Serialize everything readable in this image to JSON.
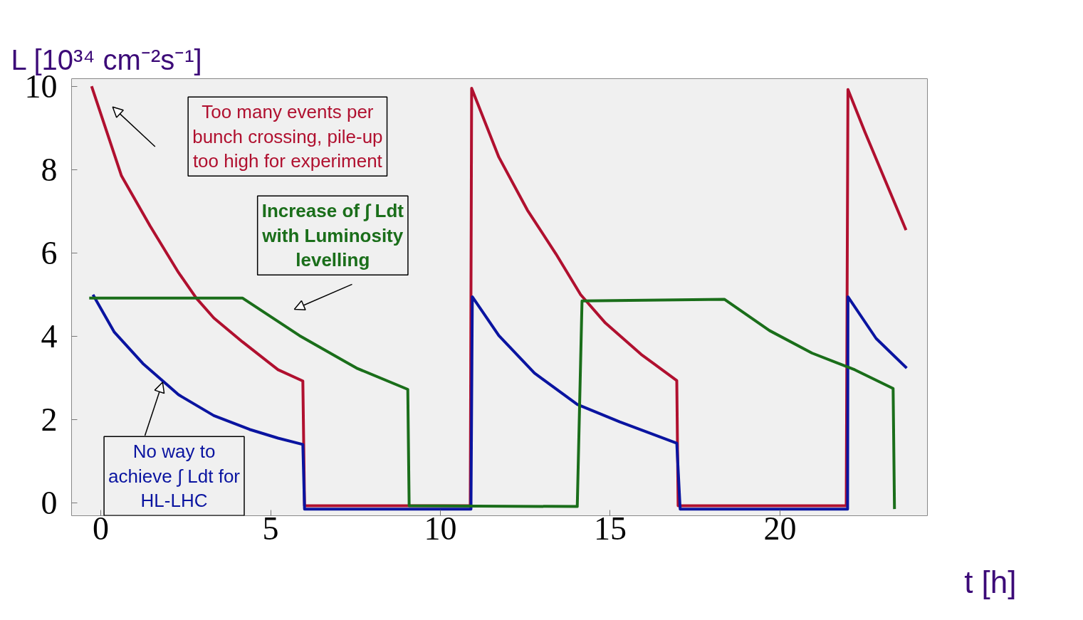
{
  "chart_data": {
    "type": "line",
    "ylabel": "L [10³⁴ cm⁻²s⁻¹]",
    "xlabel": "t [h]",
    "xlim": [
      -0.86,
      24.34
    ],
    "ylim": [
      -0.3,
      10.18
    ],
    "xticks": [
      0,
      5,
      10,
      15,
      20
    ],
    "yticks": [
      0,
      2,
      4,
      6,
      8,
      10
    ],
    "grid": false,
    "line_style": "solid",
    "marker": "none",
    "series": [
      {
        "color": "#b0102f",
        "x": [
          -0.27,
          0.61,
          1.45,
          2.29,
          2.81,
          3.33,
          4.17,
          5.22,
          5.95,
          6.0,
          10.88,
          10.92,
          11.72,
          12.56,
          13.4,
          14.13,
          14.86,
          15.91,
          16.96,
          17.0,
          21.95,
          22.0,
          22.5,
          23.04,
          23.71
        ],
        "values": [
          10,
          7.85,
          6.65,
          5.53,
          4.92,
          4.44,
          3.87,
          3.2,
          2.93,
          -0.06,
          -0.06,
          9.95,
          8.3,
          7.03,
          5.98,
          5.0,
          4.32,
          3.57,
          2.94,
          -0.06,
          -0.06,
          9.92,
          8.9,
          7.85,
          6.55
        ]
      },
      {
        "color": "#0a14a0",
        "x": [
          -0.23,
          0.4,
          1.24,
          2.29,
          3.33,
          4.38,
          5.22,
          5.95,
          6.0,
          10.9,
          10.94,
          11.72,
          12.77,
          14.03,
          15.28,
          16.96,
          17.06,
          21.99,
          22.0,
          22.83,
          23.73
        ],
        "values": [
          5.0,
          4.1,
          3.35,
          2.6,
          2.1,
          1.77,
          1.56,
          1.41,
          -0.14,
          -0.14,
          4.95,
          4.02,
          3.12,
          2.37,
          1.95,
          1.44,
          -0.14,
          -0.14,
          4.95,
          3.95,
          3.24
        ]
      },
      {
        "color": "#1a6e1a",
        "x": [
          -0.34,
          4.17,
          5.85,
          7.53,
          9.04,
          9.08,
          14.03,
          14.17,
          18.36,
          19.69,
          20.94,
          22.2,
          23.33,
          23.37
        ],
        "values": [
          4.92,
          4.92,
          4.02,
          3.24,
          2.73,
          -0.06,
          -0.08,
          4.85,
          4.89,
          4.14,
          3.6,
          3.2,
          2.75,
          -0.14
        ]
      }
    ],
    "annotations": [
      "Too many events per\nbunch crossing, pile-up\ntoo high for experiment",
      "Increase of ∫ Ldt\nwith Luminosity\nlevelling",
      {
        "text": "No way to\nachieve ∫ Ldt for\nHL-LHC",
        "x": 1.82,
        "y": 2.9
      }
    ]
  }
}
